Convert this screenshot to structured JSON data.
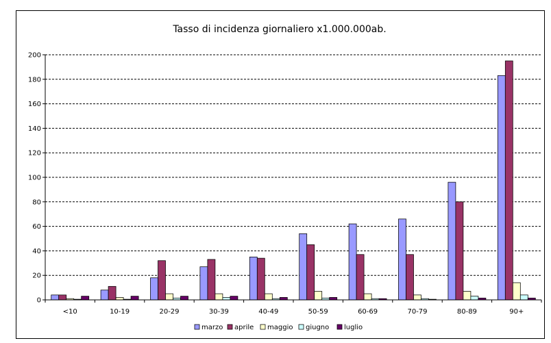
{
  "chart_data": {
    "type": "bar",
    "title": "Tasso di incidenza giornaliero x1.000.000ab.",
    "xlabel": "",
    "ylabel": "",
    "ylim": [
      0,
      200
    ],
    "yticks": [
      0,
      20,
      40,
      60,
      80,
      100,
      120,
      140,
      160,
      180,
      200
    ],
    "grid": true,
    "legend_position": "bottom",
    "categories": [
      "<10",
      "10-19",
      "20-29",
      "30-39",
      "40-49",
      "50-59",
      "60-69",
      "70-79",
      "80-89",
      "90+"
    ],
    "series": [
      {
        "name": "marzo",
        "color": "#9999FF",
        "values": [
          4,
          8,
          18,
          27,
          35,
          54,
          62,
          66,
          96,
          183
        ]
      },
      {
        "name": "aprile",
        "color": "#993366",
        "values": [
          4,
          11,
          32,
          33,
          34,
          45,
          37,
          37,
          80,
          195
        ]
      },
      {
        "name": "maggio",
        "color": "#FFFFCC",
        "values": [
          1,
          2,
          5,
          5,
          5,
          7,
          5,
          4,
          7,
          14
        ]
      },
      {
        "name": "giugno",
        "color": "#CCFFFF",
        "values": [
          0.5,
          0.5,
          1.5,
          2,
          1,
          1.5,
          1,
          1,
          3,
          4
        ]
      },
      {
        "name": "luglio",
        "color": "#660066",
        "values": [
          3,
          3,
          3,
          3,
          2,
          2,
          1,
          0.5,
          1.5,
          1.5
        ]
      }
    ]
  }
}
